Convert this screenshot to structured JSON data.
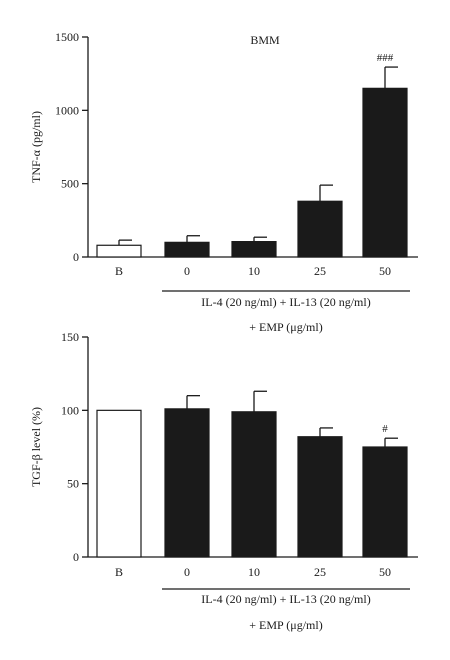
{
  "chart_data": [
    {
      "type": "bar",
      "title": "BMM",
      "ylabel": "TNF-α (pg/ml)",
      "ylim": [
        0,
        1500
      ],
      "yticks": [
        0,
        500,
        1000,
        1500
      ],
      "categories": [
        "B",
        "0",
        "10",
        "25",
        "50"
      ],
      "values": [
        80,
        100,
        105,
        380,
        1150
      ],
      "error": [
        35,
        45,
        30,
        110,
        145
      ],
      "bar_fill": [
        "white",
        "black",
        "black",
        "black",
        "black"
      ],
      "annotations": [
        {
          "category": "50",
          "text": "###"
        }
      ],
      "group_label_line1": "IL-4 (20 ng/ml) + IL-13 (20 ng/ml)",
      "group_label_line2": "+ EMP (μg/ml)"
    },
    {
      "type": "bar",
      "title": "",
      "ylabel": "TGF-β level (%)",
      "ylim": [
        0,
        150
      ],
      "yticks": [
        0,
        50,
        100,
        150
      ],
      "categories": [
        "B",
        "0",
        "10",
        "25",
        "50"
      ],
      "values": [
        100,
        101,
        99,
        82,
        75
      ],
      "error": [
        0,
        9,
        14,
        6,
        6
      ],
      "bar_fill": [
        "white",
        "black",
        "black",
        "black",
        "black"
      ],
      "annotations": [
        {
          "category": "50",
          "text": "#"
        }
      ],
      "group_label_line1": "IL-4 (20 ng/ml) + IL-13 (20 ng/ml)",
      "group_label_line2": "+ EMP (μg/ml)"
    }
  ],
  "colors": {
    "bar_dark": "#1a1a1a",
    "bar_light": "#ffffff",
    "axis": "#1a1a1a"
  }
}
